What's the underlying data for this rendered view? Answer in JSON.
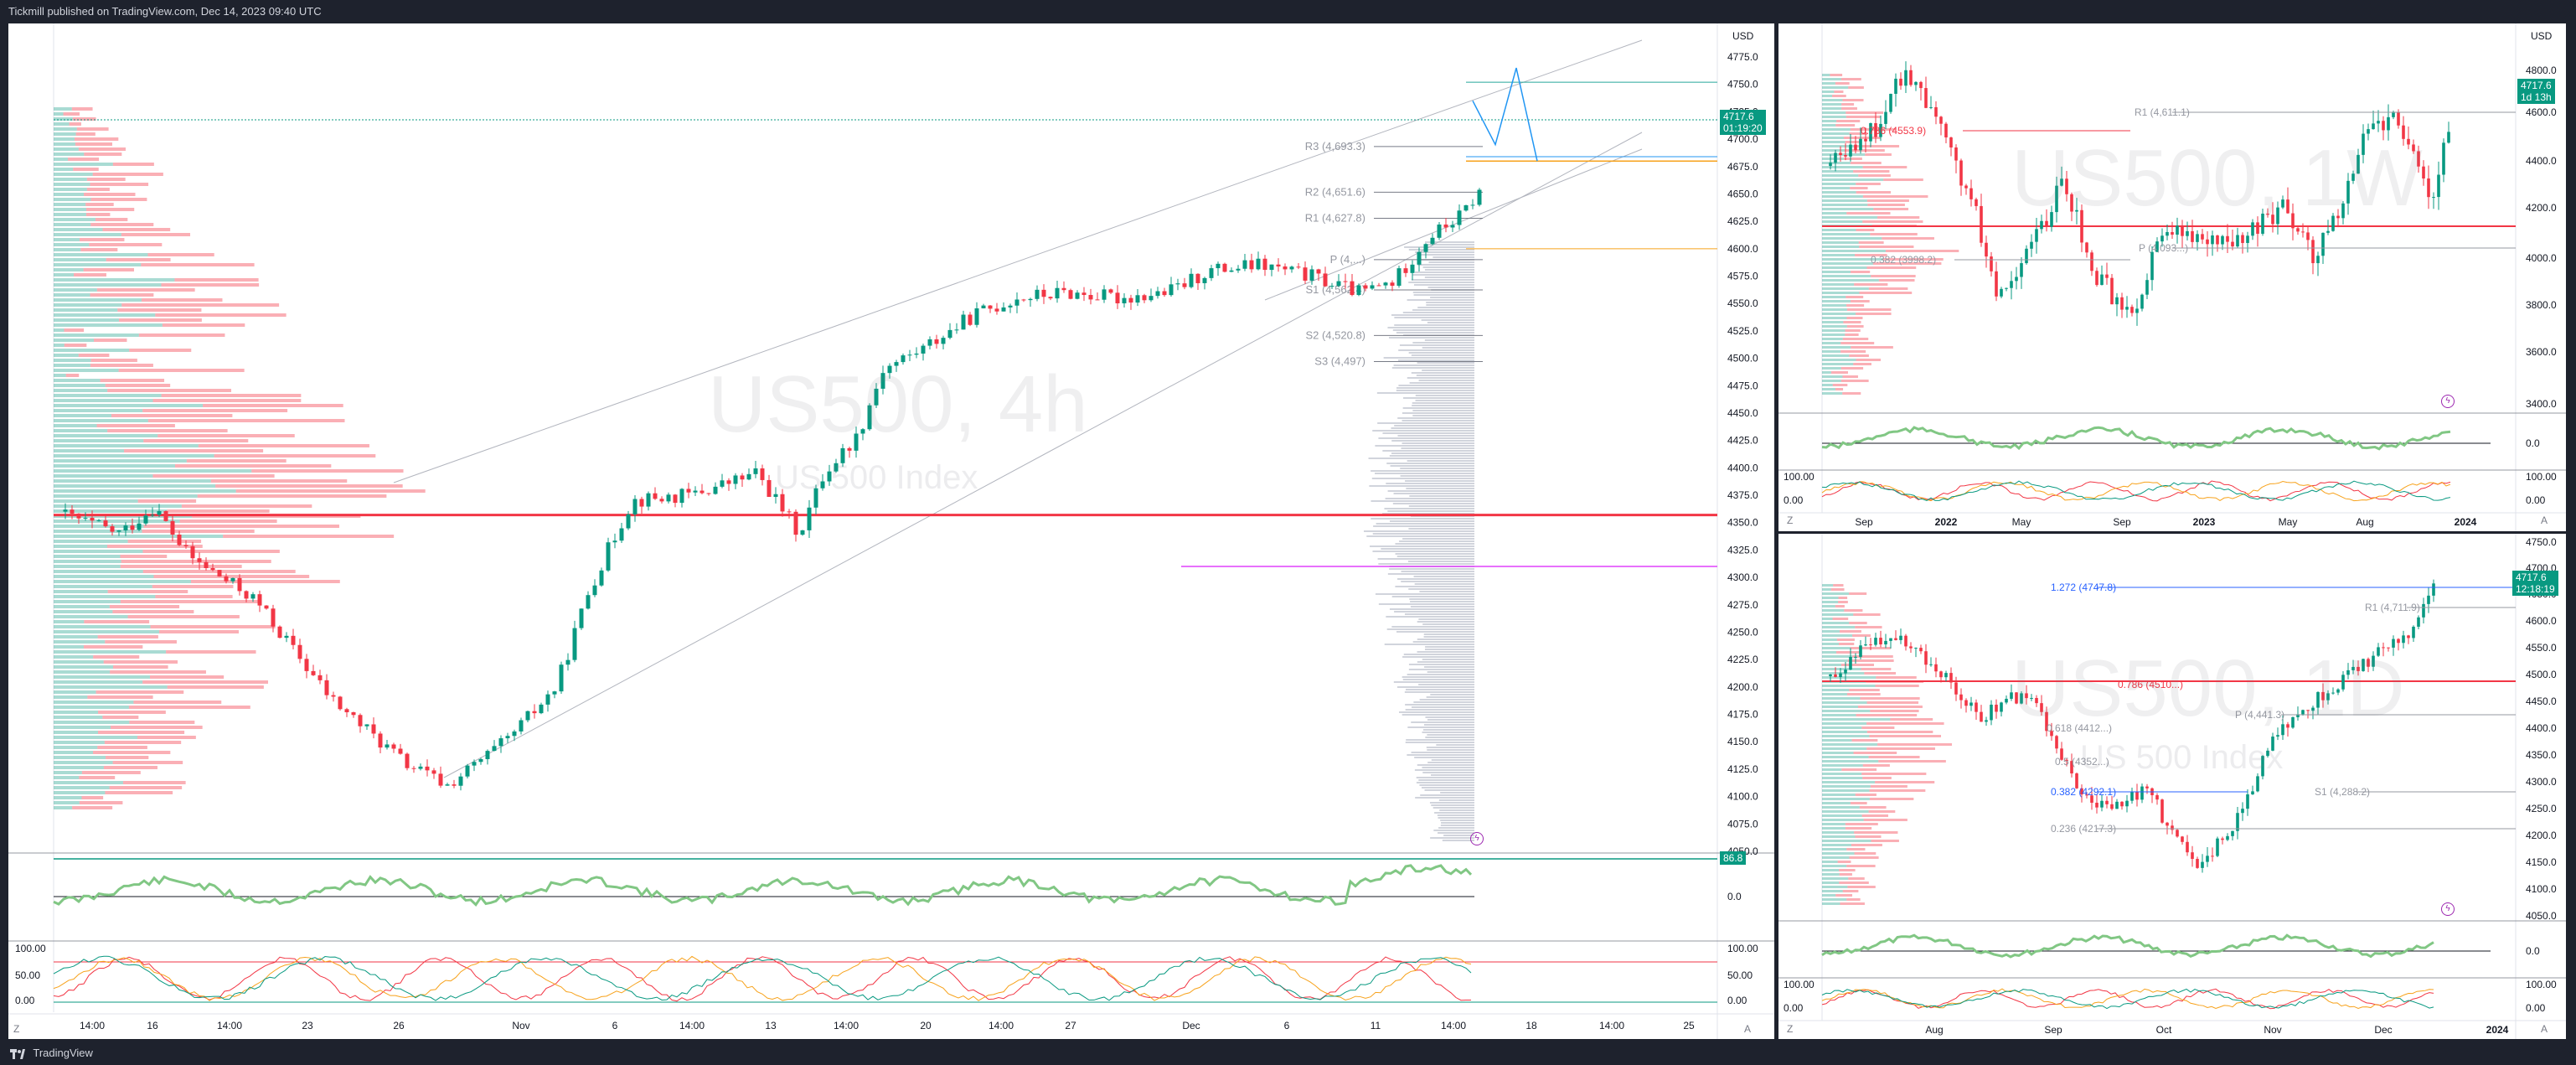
{
  "publish_info": "Tickmill published on TradingView.com, Dec 14, 2023 09:40 UTC",
  "footer_brand": "TradingView",
  "currency": "USD",
  "corner_buttons": {
    "left": "Z",
    "right": "A"
  },
  "main": {
    "symbol_watermark": "US500, 4h",
    "symbol_description": "US 500 Index",
    "price_tag": "4717.6",
    "price_countdown": "01:19:20",
    "price_axis": [
      "4775.0",
      "4750.0",
      "4725.0",
      "4700.0",
      "4675.0",
      "4650.0",
      "4625.0",
      "4600.0",
      "4575.0",
      "4550.0",
      "4525.0",
      "4500.0",
      "4475.0",
      "4450.0",
      "4425.0",
      "4400.0",
      "4375.0",
      "4350.0",
      "4325.0",
      "4300.0",
      "4275.0",
      "4250.0",
      "4225.0",
      "4200.0",
      "4175.0",
      "4150.0",
      "4125.0",
      "4100.0",
      "4075.0",
      "4050.0"
    ],
    "time_axis": [
      "14:00",
      "16",
      "14:00",
      "23",
      "26",
      "Nov",
      "6",
      "14:00",
      "13",
      "14:00",
      "20",
      "14:00",
      "27",
      "Dec",
      "6",
      "11",
      "14:00",
      "18",
      "14:00",
      "25"
    ],
    "pivots": [
      "R3 (4,693.3)",
      "R2 (4,651.6)",
      "R1 (4,627.8)",
      "P (4,...)",
      "S1 (4,562.4)",
      "S2 (4,520.8)",
      "S3 (4,497)"
    ],
    "rsi_tag": "86.8",
    "rsi_axis": [
      "0.0"
    ],
    "stoch_axis": [
      "100.00",
      "50.00",
      "0.00"
    ],
    "stoch_left_axis": [
      "100.00",
      "50.00",
      "0.00"
    ]
  },
  "weekly": {
    "symbol_watermark": "US500, 1W",
    "price_tag": "4717.6",
    "price_countdown": "1d 13h",
    "price_axis": [
      "4800.0",
      "4600.0",
      "4400.0",
      "4200.0",
      "4000.0",
      "3800.0",
      "3600.0",
      "3400.0"
    ],
    "time_axis": [
      "Sep",
      "2022",
      "May",
      "Sep",
      "2023",
      "May",
      "Aug",
      "2024"
    ],
    "labels": [
      "R1 (4,611.1)",
      "0.786 (4553.9)",
      "P (4,093...)",
      "0.382 (3998.2)"
    ],
    "rsi_axis": [
      "0.0"
    ],
    "stoch_axis": [
      "100.00",
      "0.00"
    ]
  },
  "daily": {
    "symbol_watermark": "US500, 1D",
    "symbol_description": "US 500 Index",
    "price_tag": "4717.6",
    "price_countdown": "12:18:19",
    "price_axis": [
      "4750.0",
      "4700.0",
      "4650.0",
      "4600.0",
      "4550.0",
      "4500.0",
      "4450.0",
      "4400.0",
      "4350.0",
      "4300.0",
      "4250.0",
      "4200.0",
      "4150.0",
      "4100.0",
      "4050.0"
    ],
    "time_axis": [
      "Aug",
      "Sep",
      "Oct",
      "Nov",
      "Dec",
      "2024"
    ],
    "labels": [
      "1.272 (4747.8)",
      "R1 (4,711.9)",
      "0.786 (4510...)",
      "P (4,441.3)",
      "0.618 (4412...)",
      "0.5 (4352...)",
      "0.382 (4292.1)",
      "S1 (4,288.2)",
      "0.236 (4217.3)"
    ],
    "rsi_axis": [
      "0.0"
    ],
    "stoch_axis": [
      "100.00",
      "0.00"
    ]
  },
  "colors": {
    "up": "#089981",
    "down": "#f23645",
    "accent_line": "#f23645",
    "background": "#1e222d"
  }
}
